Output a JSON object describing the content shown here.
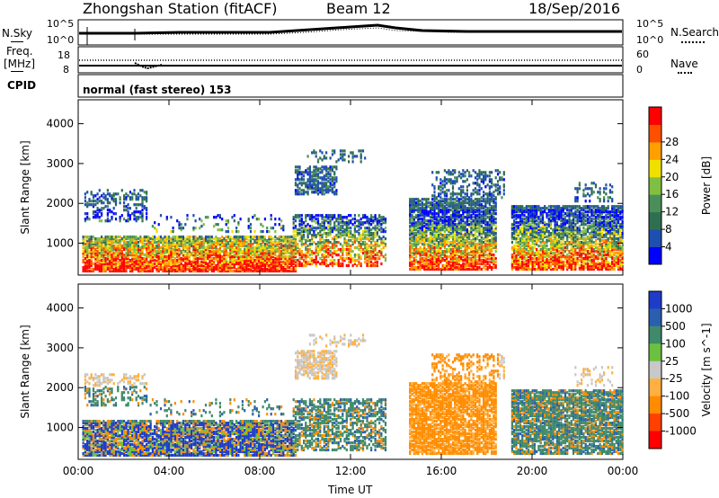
{
  "header": {
    "station_title": "Zhongshan Station (fitACF)",
    "beam_label": "Beam 12",
    "date": "18/Sep/2016"
  },
  "top_panels": {
    "nsky_label": "N.Sky",
    "nsearch_label": "N.Search",
    "nsky_ticks": [
      "10^5",
      "10^0"
    ],
    "nsearch_ticks": [
      "10^5",
      "10^0"
    ],
    "freq_label_line1": "Freq.",
    "freq_label_line2": "[MHz]",
    "freq_ticks": [
      "18",
      "8"
    ],
    "nave_label": "Nave",
    "nave_ticks": [
      "60",
      "0"
    ],
    "cpid_label": "CPID",
    "cpid_text": "normal (fast stereo) 153"
  },
  "chart_data": [
    {
      "type": "heatmap",
      "name_in_chart": "power",
      "ylabel": "Slant Range [km]",
      "xlabel": "Time UT",
      "xlim": [
        0,
        24
      ],
      "ylim": [
        200,
        4600
      ],
      "x_ticks": [
        "00:00",
        "04:00",
        "08:00",
        "12:00",
        "16:00",
        "20:00",
        "00:00"
      ],
      "y_ticks": [
        1000,
        2000,
        3000,
        4000
      ],
      "colorbar": {
        "label": "Power [dB]",
        "ticks": [
          4,
          8,
          12,
          16,
          20,
          24,
          28
        ],
        "colors": [
          "#0000ff",
          "#1e4fb0",
          "#2f6f4f",
          "#4a8f5a",
          "#80c040",
          "#f0e000",
          "#ffa000",
          "#ff5000",
          "#ff0000"
        ]
      }
    },
    {
      "type": "heatmap",
      "name_in_chart": "velocity",
      "ylabel": "Slant Range [km]",
      "xlabel": "Time UT",
      "xlim": [
        0,
        24
      ],
      "ylim": [
        200,
        4600
      ],
      "x_ticks": [
        "00:00",
        "04:00",
        "08:00",
        "12:00",
        "16:00",
        "20:00",
        "00:00"
      ],
      "y_ticks": [
        1000,
        2000,
        3000,
        4000
      ],
      "colorbar": {
        "label": "Velocity [m s^-1]",
        "ticks": [
          "1000",
          "500",
          "100",
          "25",
          "-25",
          "-100",
          "-500",
          "-1000"
        ],
        "colors": [
          "#1e3cc8",
          "#2a5fb0",
          "#3e8a6a",
          "#6cc040",
          "#c8c8c8",
          "#ffb040",
          "#ff8c00",
          "#ff4000",
          "#ff0000"
        ]
      }
    }
  ],
  "x_axis_title": "Time UT"
}
